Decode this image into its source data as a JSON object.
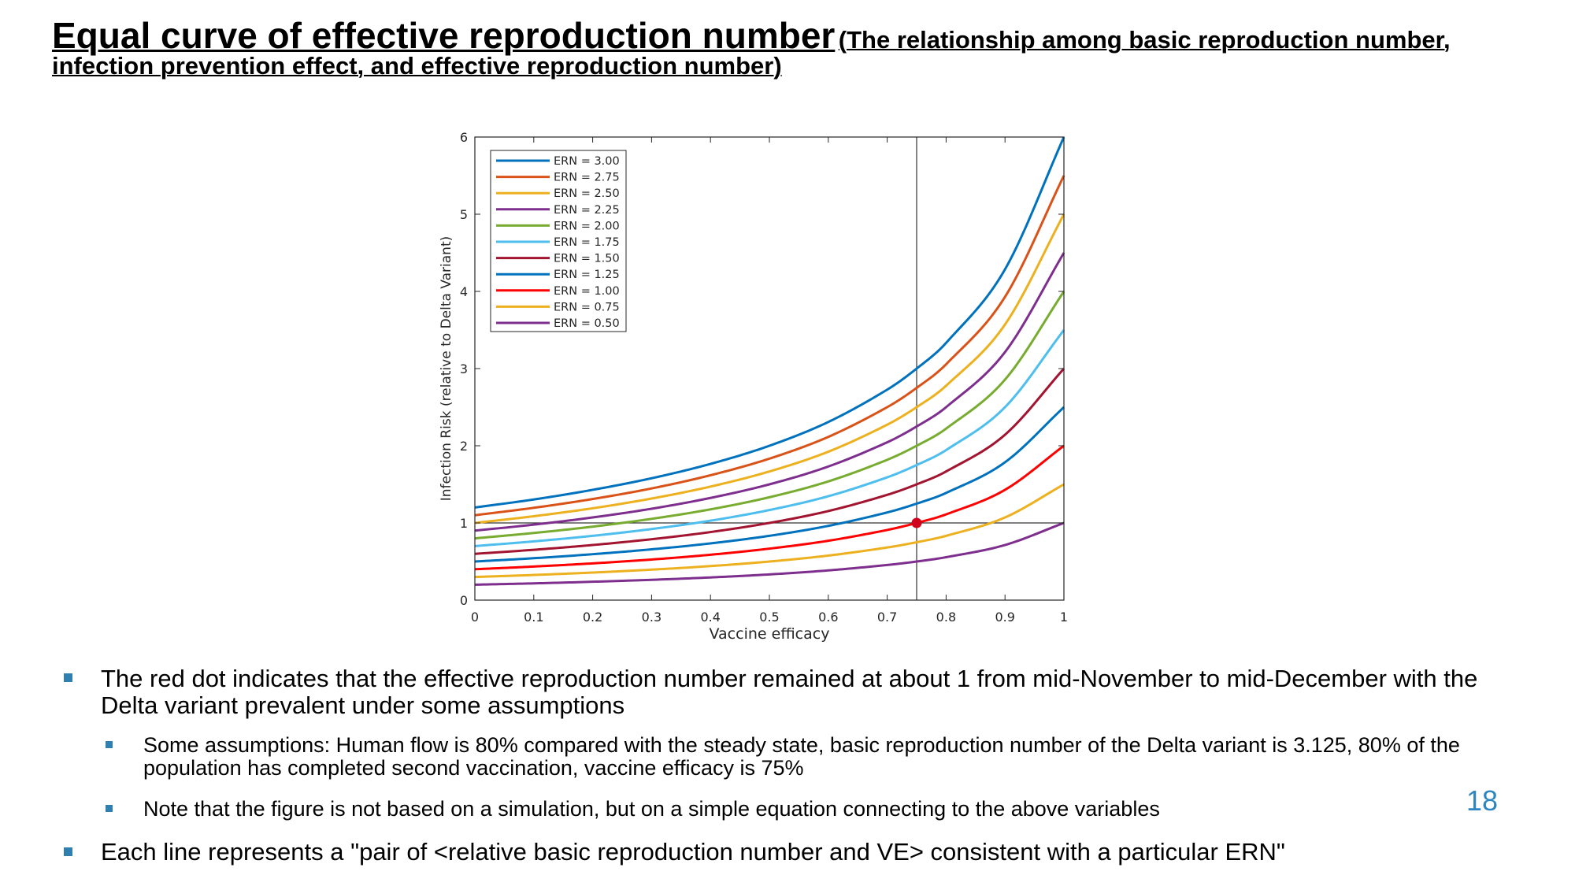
{
  "title": {
    "main": "Equal curve of effective reproduction number",
    "sub": "(The relationship among basic reproduction number, infection prevention effect, and effective reproduction number)"
  },
  "chart_data": {
    "type": "line",
    "xlabel": "Vaccine efficacy",
    "ylabel": "Infection Risk (relative to Delta Variant)",
    "xlim": [
      0,
      1
    ],
    "ylim": [
      0,
      6
    ],
    "xticks": [
      "0",
      "0.1",
      "0.2",
      "0.3",
      "0.4",
      "0.5",
      "0.6",
      "0.7",
      "0.8",
      "0.9",
      "1"
    ],
    "yticks": [
      "0",
      "1",
      "2",
      "3",
      "4",
      "5",
      "6"
    ],
    "grid": false,
    "legend_position": "top-left",
    "x": [
      0,
      0.1,
      0.2,
      0.3,
      0.4,
      0.5,
      0.6,
      0.7,
      0.75,
      0.8,
      0.9,
      1.0
    ],
    "series": [
      {
        "name": "ERN = 3.00",
        "color": "#0072BD",
        "values": [
          1.2,
          1.304,
          1.429,
          1.579,
          1.765,
          2.0,
          2.308,
          2.727,
          3.0,
          3.333,
          4.286,
          6.0
        ]
      },
      {
        "name": "ERN = 2.75",
        "color": "#D95319",
        "values": [
          1.1,
          1.196,
          1.31,
          1.447,
          1.618,
          1.833,
          2.115,
          2.5,
          2.75,
          3.056,
          3.929,
          5.5
        ]
      },
      {
        "name": "ERN = 2.50",
        "color": "#EDB120",
        "values": [
          1.0,
          1.087,
          1.19,
          1.316,
          1.471,
          1.667,
          1.923,
          2.273,
          2.5,
          2.778,
          3.571,
          5.0
        ]
      },
      {
        "name": "ERN = 2.25",
        "color": "#7E2F8E",
        "values": [
          0.9,
          0.978,
          1.071,
          1.184,
          1.324,
          1.5,
          1.731,
          2.045,
          2.25,
          2.5,
          3.214,
          4.5
        ]
      },
      {
        "name": "ERN = 2.00",
        "color": "#77AC30",
        "values": [
          0.8,
          0.87,
          0.952,
          1.053,
          1.176,
          1.333,
          1.538,
          1.818,
          2.0,
          2.222,
          2.857,
          4.0
        ]
      },
      {
        "name": "ERN = 1.75",
        "color": "#4DBEEE",
        "values": [
          0.7,
          0.761,
          0.833,
          0.921,
          1.029,
          1.167,
          1.346,
          1.591,
          1.75,
          1.944,
          2.5,
          3.5
        ]
      },
      {
        "name": "ERN = 1.50",
        "color": "#A2142F",
        "values": [
          0.6,
          0.652,
          0.714,
          0.789,
          0.882,
          1.0,
          1.154,
          1.364,
          1.5,
          1.667,
          2.143,
          3.0
        ]
      },
      {
        "name": "ERN = 1.25",
        "color": "#0072BD",
        "values": [
          0.5,
          0.543,
          0.595,
          0.658,
          0.735,
          0.833,
          0.962,
          1.136,
          1.25,
          1.389,
          1.786,
          2.5
        ]
      },
      {
        "name": "ERN = 1.00",
        "color": "#FF0000",
        "values": [
          0.4,
          0.435,
          0.476,
          0.526,
          0.588,
          0.667,
          0.769,
          0.909,
          1.0,
          1.111,
          1.429,
          2.0
        ]
      },
      {
        "name": "ERN = 0.75",
        "color": "#EDB120",
        "values": [
          0.3,
          0.326,
          0.357,
          0.395,
          0.441,
          0.5,
          0.577,
          0.682,
          0.75,
          0.833,
          1.071,
          1.5
        ]
      },
      {
        "name": "ERN = 0.50",
        "color": "#7E2F8E",
        "values": [
          0.2,
          0.217,
          0.238,
          0.263,
          0.294,
          0.333,
          0.385,
          0.455,
          0.5,
          0.556,
          0.714,
          1.0
        ]
      }
    ],
    "reference_lines": {
      "x": 0.75,
      "y": 1
    },
    "highlight_point": {
      "x": 0.75,
      "y": 1,
      "color": "#D0021B"
    }
  },
  "bullets": [
    {
      "text": "The red dot indicates that the effective reproduction number remained at about 1 from mid-November to mid-December with the Delta variant prevalent under some assumptions"
    },
    {
      "text": "Some assumptions: Human flow is 80% compared with the steady state, basic reproduction number of the Delta variant is 3.125, 80% of the population has completed second vaccination, vaccine efficacy is 75%"
    },
    {
      "text": "Note that the figure is not based on a simulation, but on a simple equation connecting to the above variables"
    },
    {
      "text": "Each line represents a \"pair of <relative basic reproduction number and VE> consistent with a particular ERN\""
    }
  ],
  "page_number": "18"
}
